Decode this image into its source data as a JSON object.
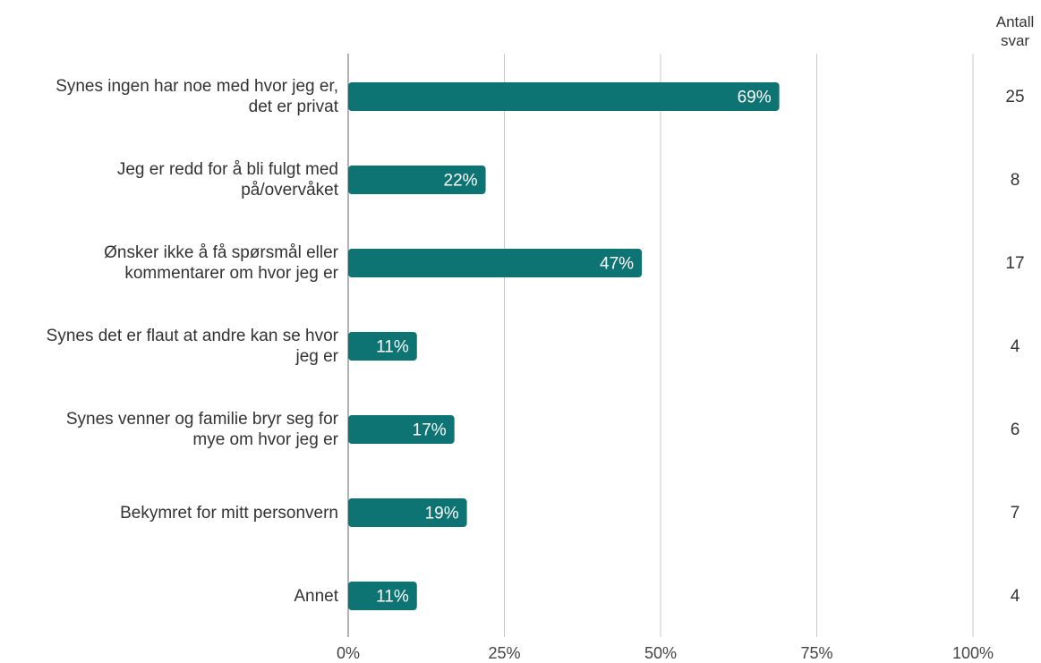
{
  "chart_data": {
    "type": "bar",
    "orientation": "horizontal",
    "categories": [
      "Synes ingen har noe med hvor jeg er,\ndet er privat",
      "Jeg er redd for å bli fulgt med\npå/overvåket",
      "Ønsker ikke å få spørsmål eller\nkommentarer om hvor jeg er",
      "Synes det er flaut at andre kan se hvor\njeg er",
      "Synes venner og familie bryr seg for\nmye om hvor jeg er",
      "Bekymret for mitt personvern",
      "Annet"
    ],
    "values": [
      69,
      22,
      47,
      11,
      17,
      19,
      11
    ],
    "value_labels": [
      "69%",
      "22%",
      "47%",
      "11%",
      "17%",
      "19%",
      "11%"
    ],
    "counts_header": "Antall\nsvar",
    "counts": [
      "25",
      "8",
      "17",
      "4",
      "6",
      "7",
      "4"
    ],
    "xlim": [
      0,
      100
    ],
    "x_ticks": [
      0,
      25,
      50,
      75,
      100
    ],
    "x_tick_labels": [
      "0%",
      "25%",
      "50%",
      "75%",
      "100%"
    ],
    "grid": true,
    "colors": {
      "bar": "#0e7373",
      "bar_label": "#ffffff",
      "grid": "#c8c8c8"
    }
  }
}
